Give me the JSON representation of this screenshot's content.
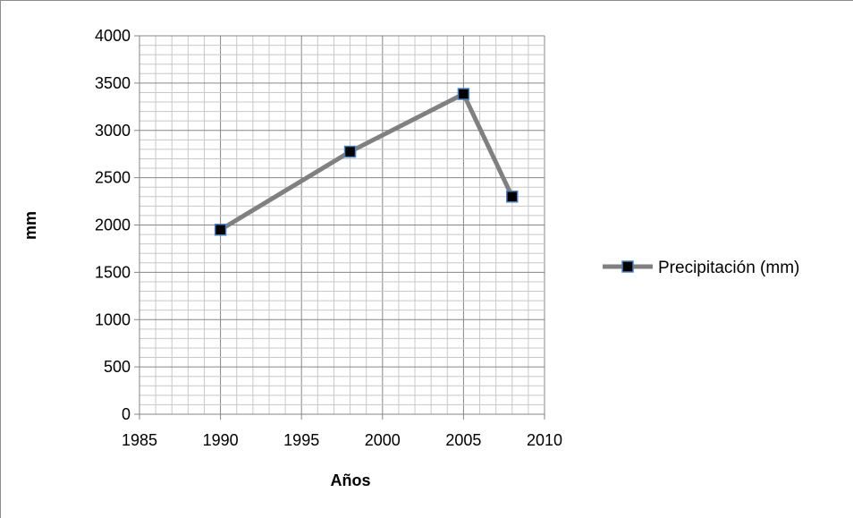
{
  "chart_data": {
    "type": "scatter",
    "title": "",
    "xlabel": "Años",
    "ylabel": "mm",
    "xlim": [
      1985,
      2010
    ],
    "ylim": [
      0,
      4000
    ],
    "x_ticks": [
      "1985",
      "1990",
      "1995",
      "2000",
      "2005",
      "2010"
    ],
    "y_ticks": [
      "0",
      "500",
      "1000",
      "1500",
      "2000",
      "2500",
      "3000",
      "3500",
      "4000"
    ],
    "grid": true,
    "legend_position": "right",
    "series": [
      {
        "name": "Precipitación (mm)",
        "color": "#808080",
        "marker_color": "#000000",
        "marker_edge_color": "#4f81bd",
        "marker": "square",
        "points": [
          {
            "x": 1990,
            "y": 1950
          },
          {
            "x": 1998,
            "y": 2775
          },
          {
            "x": 2005,
            "y": 3385
          },
          {
            "x": 2008,
            "y": 2300
          }
        ]
      }
    ]
  }
}
